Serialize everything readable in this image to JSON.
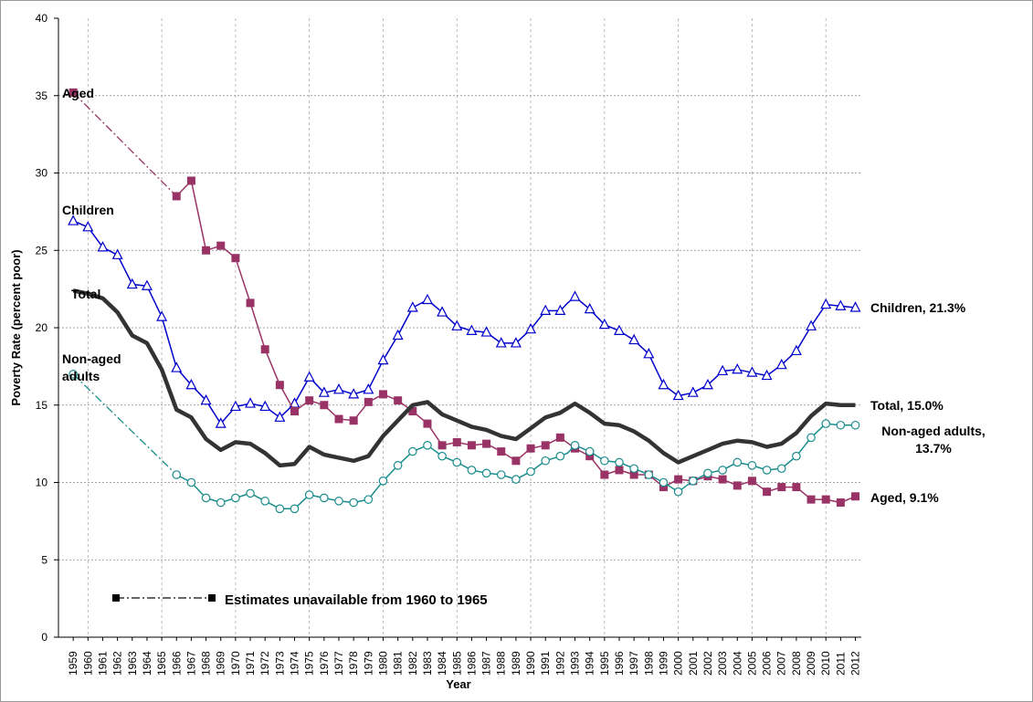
{
  "chart_data": {
    "type": "line",
    "title": "",
    "xlabel": "Year",
    "ylabel": "Poverty Rate (percent poor)",
    "ylim": [
      0,
      40
    ],
    "yticks": [
      0,
      5,
      10,
      15,
      20,
      25,
      30,
      35,
      40
    ],
    "x": [
      1959,
      1960,
      1961,
      1962,
      1963,
      1964,
      1965,
      1966,
      1967,
      1968,
      1969,
      1970,
      1971,
      1972,
      1973,
      1974,
      1975,
      1976,
      1977,
      1978,
      1979,
      1980,
      1981,
      1982,
      1983,
      1984,
      1985,
      1986,
      1987,
      1988,
      1989,
      1990,
      1991,
      1992,
      1993,
      1994,
      1995,
      1996,
      1997,
      1998,
      1999,
      2000,
      2001,
      2002,
      2003,
      2004,
      2005,
      2006,
      2007,
      2008,
      2009,
      2010,
      2011,
      2012
    ],
    "gap_note": "Estimates unavailable from 1960 to 1965",
    "series": [
      {
        "name": "Children",
        "color": "#0000cc",
        "marker": "triangle",
        "label": "Children",
        "end_label": "Children, 21.3%",
        "points": [
          [
            1959,
            26.9
          ],
          [
            1960,
            26.5
          ],
          [
            1961,
            25.2
          ],
          [
            1962,
            24.7
          ],
          [
            1963,
            22.8
          ],
          [
            1964,
            22.7
          ],
          [
            1965,
            20.7
          ],
          [
            1966,
            17.4
          ],
          [
            1967,
            16.3
          ],
          [
            1968,
            15.3
          ],
          [
            1969,
            13.8
          ],
          [
            1970,
            14.9
          ],
          [
            1971,
            15.1
          ],
          [
            1972,
            14.9
          ],
          [
            1973,
            14.2
          ],
          [
            1974,
            15.1
          ],
          [
            1975,
            16.8
          ],
          [
            1976,
            15.8
          ],
          [
            1977,
            16.0
          ],
          [
            1978,
            15.7
          ],
          [
            1979,
            16.0
          ],
          [
            1980,
            17.9
          ],
          [
            1981,
            19.5
          ],
          [
            1982,
            21.3
          ],
          [
            1983,
            21.8
          ],
          [
            1984,
            21.0
          ],
          [
            1985,
            20.1
          ],
          [
            1986,
            19.8
          ],
          [
            1987,
            19.7
          ],
          [
            1988,
            19.0
          ],
          [
            1989,
            19.0
          ],
          [
            1990,
            19.9
          ],
          [
            1991,
            21.1
          ],
          [
            1992,
            21.1
          ],
          [
            1992.5,
            21.6
          ],
          [
            1993,
            22.0
          ],
          [
            1994,
            21.2
          ],
          [
            1995,
            20.2
          ],
          [
            1996,
            19.8
          ],
          [
            1997,
            19.2
          ],
          [
            1998,
            18.3
          ],
          [
            1999,
            16.3
          ],
          [
            2000,
            15.6
          ],
          [
            2001,
            15.8
          ],
          [
            2002,
            16.3
          ],
          [
            2003,
            17.2
          ],
          [
            2004,
            17.3
          ],
          [
            2005,
            17.1
          ],
          [
            2006,
            16.9
          ],
          [
            2007,
            17.6
          ],
          [
            2008,
            18.5
          ],
          [
            2009,
            20.1
          ],
          [
            2010,
            21.5
          ],
          [
            2011,
            21.4
          ],
          [
            2012,
            21.3
          ]
        ]
      },
      {
        "name": "Aged",
        "color": "#993366",
        "marker": "square",
        "label": "Aged",
        "end_label": "Aged, 9.1%",
        "gap_from": 1959,
        "gap_to": 1966,
        "points": [
          [
            1959,
            35.2
          ],
          [
            1966,
            28.5
          ],
          [
            1967,
            29.5
          ],
          [
            1968,
            25.0
          ],
          [
            1969,
            25.3
          ],
          [
            1970,
            24.5
          ],
          [
            1971,
            21.6
          ],
          [
            1972,
            18.6
          ],
          [
            1973,
            16.3
          ],
          [
            1974,
            14.6
          ],
          [
            1975,
            15.3
          ],
          [
            1976,
            15.0
          ],
          [
            1977,
            14.1
          ],
          [
            1978,
            14.0
          ],
          [
            1979,
            15.2
          ],
          [
            1980,
            15.7
          ],
          [
            1981,
            15.3
          ],
          [
            1982,
            14.6
          ],
          [
            1983,
            13.8
          ],
          [
            1984,
            12.4
          ],
          [
            1985,
            12.6
          ],
          [
            1986,
            12.4
          ],
          [
            1987,
            12.5
          ],
          [
            1988,
            12.0
          ],
          [
            1989,
            11.4
          ],
          [
            1990,
            12.2
          ],
          [
            1991,
            12.4
          ],
          [
            1992,
            12.9
          ],
          [
            1993,
            12.2
          ],
          [
            1994,
            11.7
          ],
          [
            1995,
            10.5
          ],
          [
            1996,
            10.8
          ],
          [
            1997,
            10.5
          ],
          [
            1998,
            10.5
          ],
          [
            1999,
            9.7
          ],
          [
            2000,
            10.2
          ],
          [
            2001,
            10.1
          ],
          [
            2002,
            10.4
          ],
          [
            2003,
            10.2
          ],
          [
            2004,
            9.8
          ],
          [
            2005,
            10.1
          ],
          [
            2006,
            9.4
          ],
          [
            2007,
            9.7
          ],
          [
            2008,
            9.7
          ],
          [
            2009,
            8.9
          ],
          [
            2010,
            8.9
          ],
          [
            2011,
            8.7
          ],
          [
            2012,
            9.1
          ]
        ]
      },
      {
        "name": "Total",
        "color": "#333333",
        "marker": "none",
        "label": "Total",
        "end_label": "Total, 15.0%",
        "points": [
          [
            1959,
            22.4
          ],
          [
            1960,
            22.2
          ],
          [
            1961,
            21.9
          ],
          [
            1962,
            21.0
          ],
          [
            1963,
            19.5
          ],
          [
            1964,
            19.0
          ],
          [
            1965,
            17.3
          ],
          [
            1966,
            14.7
          ],
          [
            1967,
            14.2
          ],
          [
            1968,
            12.8
          ],
          [
            1969,
            12.1
          ],
          [
            1970,
            12.6
          ],
          [
            1971,
            12.5
          ],
          [
            1972,
            11.9
          ],
          [
            1973,
            11.1
          ],
          [
            1974,
            11.2
          ],
          [
            1975,
            12.3
          ],
          [
            1976,
            11.8
          ],
          [
            1977,
            11.6
          ],
          [
            1978,
            11.4
          ],
          [
            1979,
            11.7
          ],
          [
            1980,
            13.0
          ],
          [
            1981,
            14.0
          ],
          [
            1982,
            15.0
          ],
          [
            1983,
            15.2
          ],
          [
            1984,
            14.4
          ],
          [
            1985,
            14.0
          ],
          [
            1986,
            13.6
          ],
          [
            1987,
            13.4
          ],
          [
            1988,
            13.0
          ],
          [
            1989,
            12.8
          ],
          [
            1990,
            13.5
          ],
          [
            1991,
            14.2
          ],
          [
            1992,
            14.5
          ],
          [
            1992.5,
            14.8
          ],
          [
            1993,
            15.1
          ],
          [
            1994,
            14.5
          ],
          [
            1995,
            13.8
          ],
          [
            1996,
            13.7
          ],
          [
            1997,
            13.3
          ],
          [
            1998,
            12.7
          ],
          [
            1999,
            11.9
          ],
          [
            2000,
            11.3
          ],
          [
            2001,
            11.7
          ],
          [
            2002,
            12.1
          ],
          [
            2003,
            12.5
          ],
          [
            2004,
            12.7
          ],
          [
            2005,
            12.6
          ],
          [
            2006,
            12.3
          ],
          [
            2007,
            12.5
          ],
          [
            2008,
            13.2
          ],
          [
            2009,
            14.3
          ],
          [
            2010,
            15.1
          ],
          [
            2011,
            15.0
          ],
          [
            2012,
            15.0
          ]
        ]
      },
      {
        "name": "Non-aged adults",
        "color": "#1a8c8c",
        "marker": "circle",
        "label": [
          "Non-aged",
          "adults"
        ],
        "end_label": [
          "Non-aged adults,",
          "13.7%"
        ],
        "gap_from": 1959,
        "gap_to": 1966,
        "points": [
          [
            1959,
            17.0
          ],
          [
            1966,
            10.5
          ],
          [
            1967,
            10.0
          ],
          [
            1968,
            9.0
          ],
          [
            1969,
            8.7
          ],
          [
            1970,
            9.0
          ],
          [
            1971,
            9.3
          ],
          [
            1972,
            8.8
          ],
          [
            1973,
            8.3
          ],
          [
            1974,
            8.3
          ],
          [
            1975,
            9.2
          ],
          [
            1976,
            9.0
          ],
          [
            1977,
            8.8
          ],
          [
            1978,
            8.7
          ],
          [
            1979,
            8.9
          ],
          [
            1980,
            10.1
          ],
          [
            1981,
            11.1
          ],
          [
            1982,
            12.0
          ],
          [
            1983,
            12.4
          ],
          [
            1984,
            11.7
          ],
          [
            1985,
            11.3
          ],
          [
            1986,
            10.8
          ],
          [
            1987,
            10.6
          ],
          [
            1988,
            10.5
          ],
          [
            1989,
            10.2
          ],
          [
            1990,
            10.7
          ],
          [
            1991,
            11.4
          ],
          [
            1992,
            11.7
          ],
          [
            1992.5,
            11.9
          ],
          [
            1993,
            12.4
          ],
          [
            1994,
            12.0
          ],
          [
            1995,
            11.4
          ],
          [
            1996,
            11.3
          ],
          [
            1997,
            10.9
          ],
          [
            1998,
            10.5
          ],
          [
            1999,
            10.0
          ],
          [
            2000,
            9.4
          ],
          [
            2001,
            10.1
          ],
          [
            2002,
            10.6
          ],
          [
            2003,
            10.8
          ],
          [
            2004,
            11.3
          ],
          [
            2005,
            11.1
          ],
          [
            2006,
            10.8
          ],
          [
            2007,
            10.9
          ],
          [
            2008,
            11.7
          ],
          [
            2009,
            12.9
          ],
          [
            2010,
            13.8
          ],
          [
            2011,
            13.7
          ],
          [
            2012,
            13.7
          ]
        ]
      }
    ]
  }
}
